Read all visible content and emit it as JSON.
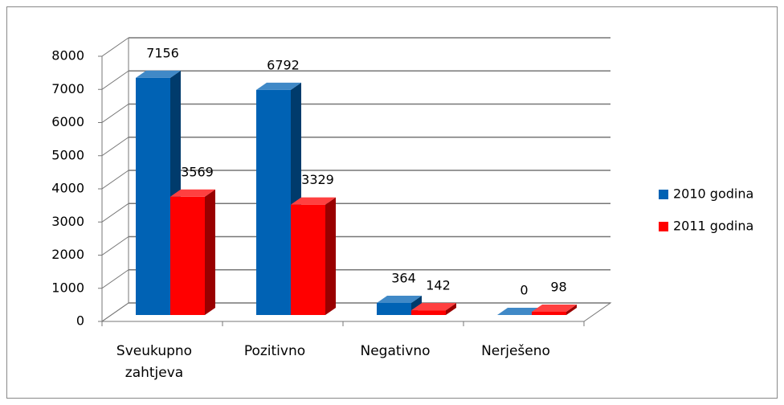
{
  "chart_data": {
    "type": "bar3d",
    "categories": [
      "Sveukupno zahtjeva",
      "Pozitivno",
      "Negativno",
      "Nerješeno"
    ],
    "series": [
      {
        "name": "2010 godina",
        "color": "#0062b4",
        "values": [
          7156,
          6792,
          364,
          0
        ]
      },
      {
        "name": "2011 godina",
        "color": "#ff0000",
        "values": [
          3569,
          3329,
          142,
          98
        ]
      }
    ],
    "ylim": [
      0,
      8000
    ],
    "yticks": [
      0,
      1000,
      2000,
      3000,
      4000,
      5000,
      6000,
      7000,
      8000
    ],
    "grid": true,
    "legend": "right"
  }
}
